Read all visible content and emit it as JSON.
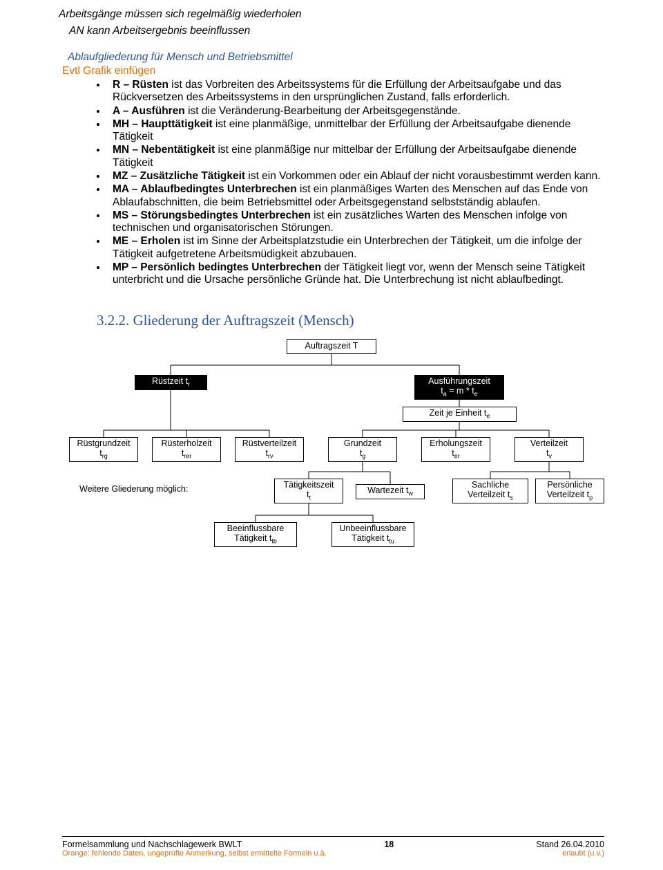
{
  "header": {
    "line1": "Arbeitsgänge müssen sich regelmäßig wiederholen",
    "line2": "AN kann Arbeitsergebnis beeinflussen"
  },
  "intro": {
    "blue_title": "Ablaufgliederung für Mensch und Betriebsmittel",
    "orange_hint": "Evtl Grafik einfügen"
  },
  "bullets": [
    {
      "bold": "R – Rüsten ",
      "rest": "ist das Vorbreiten des Arbeitssystems für die Erfüllung der Arbeitsaufgabe und das Rückversetzen des Arbeitssystems in den ursprünglichen Zustand, falls erforderlich."
    },
    {
      "bold": "A – Ausführen ",
      "rest": "ist die Veränderung-Bearbeitung der Arbeitsgegenstände."
    },
    {
      "bold": "MH – Haupttätigkeit ",
      "rest": "ist eine planmäßige, unmittelbar der Erfüllung der Arbeitsaufgabe dienende Tätigkeit"
    },
    {
      "bold": "MN – Nebentätigkeit ",
      "rest": "ist eine planmäßige nur mittelbar der Erfüllung der Arbeitsaufgabe dienende Tätigkeit"
    },
    {
      "bold": "MZ – Zusätzliche Tätigkeit ",
      "rest": "ist ein Vorkommen oder ein Ablauf der nicht vorausbestimmt werden kann."
    },
    {
      "bold": "MA – Ablaufbedingtes Unterbrechen ",
      "rest": "ist ein planmäßiges Warten des Menschen auf das Ende von Ablaufabschnitten, die beim Betriebsmittel oder Arbeitsgegenstand selbstständig ablaufen."
    },
    {
      "bold": "MS – Störungsbedingtes Unterbrechen ",
      "rest": "ist ein zusätzliches Warten des Menschen infolge von technischen und organisatorischen Störungen."
    },
    {
      "bold": "ME – Erholen ",
      "rest": "ist im Sinne der Arbeitsplatzstudie ein Unterbrechen der Tätigkeit, um die infolge der Tätigkeit aufgetretene Arbeitsmüdigkeit abzubauen."
    },
    {
      "bold": "MP – Persönlich bedingtes Unterbrechen ",
      "rest": "der Tätigkeit liegt vor, wenn der Mensch seine Tätigkeit unterbricht und die Ursache persönliche Gründe hat. Die Unterbrechung ist nicht ablaufbedingt."
    }
  ],
  "section_heading": "3.2.2. Gliederung der Auftragszeit (Mensch)",
  "diagram": {
    "nodes": {
      "root": {
        "l1": "Auftragszeit  T",
        "l2": ""
      },
      "ruest": {
        "l1": "Rüstzeit  t",
        "sub": "r"
      },
      "ausf": {
        "l1": "Ausführungszeit",
        "l2": "t",
        "sub": "a",
        "l2b": " = m * t",
        "sub2": "e"
      },
      "zeit_einheit": {
        "l1": "Zeit je Einheit  t",
        "sub": "e"
      },
      "rg": {
        "l1": "Rüstgrundzeit",
        "l2": "t",
        "sub": "rg"
      },
      "rer": {
        "l1": "Rüsterholzeit",
        "l2": "t",
        "sub": "rer"
      },
      "rv": {
        "l1": "Rüstverteilzeit",
        "l2": "t",
        "sub": "rv"
      },
      "g": {
        "l1": "Grundzeit",
        "l2": "t",
        "sub": "g"
      },
      "er": {
        "l1": "Erholungszeit",
        "l2": "t",
        "sub": "er"
      },
      "v": {
        "l1": "Verteilzeit",
        "l2": "t",
        "sub": "v"
      },
      "weitere": "Weitere Gliederung möglich:",
      "tt": {
        "l1": "Tätigkeitszeit",
        "l2": "t",
        "sub": "t"
      },
      "tw": {
        "l1": "Wartezeit  t",
        "sub": "w"
      },
      "ts": {
        "l1": "Sachliche",
        "l2": "Verteilzeit  t",
        "sub": "s"
      },
      "tp": {
        "l1": "Persönliche",
        "l2": "Verteilzeit  t",
        "sub": "p"
      },
      "ttb": {
        "l1": "Beeinflussbare",
        "l2": "Tätigkeit  t",
        "sub": "tb"
      },
      "ttu": {
        "l1": "Unbeeinflussbare",
        "l2": "Tätigkeit  t",
        "sub": "tu"
      }
    }
  },
  "footer": {
    "left1": "Formelsammlung und Nachschlagewerk BWLT",
    "page": "18",
    "right1": "Stand 26.04.2010",
    "left2": "Orange: fehlende Daten, ungeprüfte Anmerkung, selbst ermittelte Formeln u.ä.",
    "right2": "erlaubt (u.v.)"
  }
}
